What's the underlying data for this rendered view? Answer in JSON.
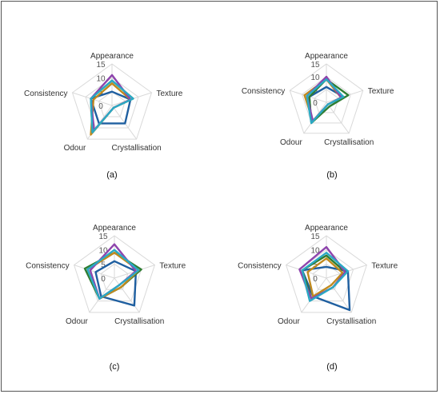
{
  "figure": {
    "panels": [
      {
        "id": "a",
        "caption": "(a)"
      },
      {
        "id": "b",
        "caption": "(b)"
      },
      {
        "id": "c",
        "caption": "(c)"
      },
      {
        "id": "d",
        "caption": "(d)"
      }
    ]
  },
  "chart_data": [
    {
      "type": "radar",
      "panel": "(a)",
      "axes": [
        "Appearance",
        "Texture",
        "Crystallisation",
        "Odour",
        "Consistency"
      ],
      "rlim": [
        0,
        15
      ],
      "ticks": [
        "0",
        "5",
        "10",
        "15"
      ],
      "series": [
        {
          "color": "#1f5fa0",
          "values": [
            5,
            7,
            8,
            8,
            8
          ]
        },
        {
          "color": "#2e7d32",
          "values": [
            9,
            8,
            1,
            12,
            8
          ]
        },
        {
          "color": "#c08a1e",
          "values": [
            8,
            7,
            1,
            13,
            7
          ]
        },
        {
          "color": "#8e44ad",
          "values": [
            11,
            7,
            1,
            11,
            8
          ]
        },
        {
          "color": "#2aa9c4",
          "values": [
            9,
            8,
            1,
            12,
            8
          ]
        }
      ]
    },
    {
      "type": "radar",
      "panel": "(b)",
      "axes": [
        "Appearance",
        "Texture",
        "Crystallisation",
        "Odour",
        "Consistency"
      ],
      "rlim": [
        0,
        15
      ],
      "ticks": [
        "0",
        "5",
        "10",
        "15"
      ],
      "series": [
        {
          "color": "#1f5fa0",
          "values": [
            6,
            7,
            1,
            10,
            7
          ]
        },
        {
          "color": "#2e7d32",
          "values": [
            9,
            9,
            2,
            10,
            7
          ]
        },
        {
          "color": "#c08a1e",
          "values": [
            9,
            6,
            1,
            9,
            9
          ]
        },
        {
          "color": "#8e44ad",
          "values": [
            10,
            6,
            1,
            9,
            8
          ]
        },
        {
          "color": "#2aa9c4",
          "values": [
            9,
            7,
            1,
            10,
            8
          ]
        }
      ]
    },
    {
      "type": "radar",
      "panel": "(c)",
      "axes": [
        "Appearance",
        "Texture",
        "Crystallisation",
        "Odour",
        "Consistency"
      ],
      "rlim": [
        0,
        15
      ],
      "ticks": [
        "0",
        "5",
        "10",
        "15"
      ],
      "series": [
        {
          "color": "#1f5fa0",
          "values": [
            6,
            8,
            12,
            8,
            7
          ]
        },
        {
          "color": "#2e7d32",
          "values": [
            9,
            10,
            4,
            9,
            11
          ]
        },
        {
          "color": "#c08a1e",
          "values": [
            9,
            9,
            4,
            9,
            10
          ]
        },
        {
          "color": "#8e44ad",
          "values": [
            12,
            8,
            3,
            9,
            9
          ]
        },
        {
          "color": "#2aa9c4",
          "values": [
            10,
            9,
            3,
            9,
            10
          ]
        }
      ]
    },
    {
      "type": "radar",
      "panel": "(d)",
      "axes": [
        "Appearance",
        "Texture",
        "Crystallisation",
        "Odour",
        "Consistency"
      ],
      "rlim": [
        0,
        15
      ],
      "ticks": [
        "0",
        "5",
        "10",
        "15"
      ],
      "series": [
        {
          "color": "#1f5fa0",
          "values": [
            4,
            8,
            14,
            8,
            9
          ]
        },
        {
          "color": "#2e7d32",
          "values": [
            8,
            7,
            4,
            9,
            9
          ]
        },
        {
          "color": "#c08a1e",
          "values": [
            7,
            6,
            3,
            8,
            7
          ]
        },
        {
          "color": "#8e44ad",
          "values": [
            11,
            7,
            4,
            9,
            10
          ]
        },
        {
          "color": "#2aa9c4",
          "values": [
            9,
            8,
            4,
            10,
            9
          ]
        }
      ]
    }
  ]
}
